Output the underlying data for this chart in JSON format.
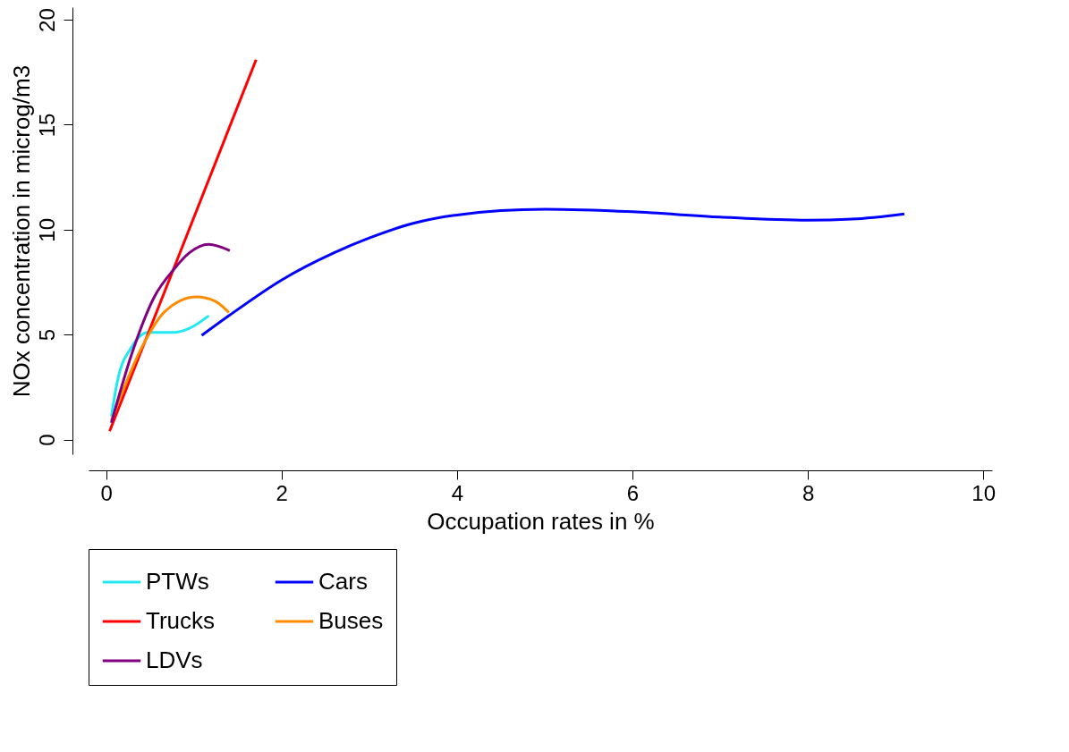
{
  "chart_data": {
    "type": "line",
    "xlabel": "Occupation rates in %",
    "ylabel": "NOx concentration in microg/m3",
    "xlim": [
      -0.2,
      10.1
    ],
    "ylim": [
      -0.7,
      20.6
    ],
    "xticks": [
      0,
      2,
      4,
      6,
      8,
      10
    ],
    "yticks": [
      0,
      5,
      10,
      15,
      20
    ],
    "grid": false,
    "legend": "bottom",
    "line_style": "solid",
    "marker": "none",
    "series": [
      {
        "name": "PTWs",
        "color": "#22e8f0",
        "x": [
          0.06,
          0.13,
          0.29,
          0.48,
          0.77,
          0.95,
          1.17
        ],
        "values": [
          1.1,
          2.8,
          4.4,
          5.1,
          5.1,
          5.3,
          5.9
        ]
      },
      {
        "name": "Cars",
        "color": "#0000ff",
        "x": [
          1.09,
          1.4,
          2,
          2.6,
          3,
          3.5,
          4,
          5,
          6,
          7,
          8,
          8.5,
          9.1
        ],
        "values": [
          4.96,
          5.9,
          7.6,
          8.9,
          9.6,
          10.3,
          10.7,
          10.97,
          10.85,
          10.6,
          10.45,
          10.5,
          10.75
        ]
      },
      {
        "name": "Trucks",
        "color": "#ff0000",
        "x": [
          0.04,
          1.71
        ],
        "values": [
          0.4,
          18.1
        ]
      },
      {
        "name": "Buses",
        "color": "#ff8c00",
        "x": [
          0.06,
          0.42,
          0.67,
          1.03,
          1.24,
          1.4
        ],
        "values": [
          0.9,
          4.5,
          6.1,
          6.8,
          6.6,
          6.05
        ]
      },
      {
        "name": "LDVs",
        "color": "#800080",
        "x": [
          0.06,
          0.29,
          0.55,
          0.77,
          0.95,
          1.17,
          1.41
        ],
        "values": [
          0.8,
          4.05,
          6.8,
          8.1,
          8.9,
          9.3,
          9.0
        ]
      }
    ]
  }
}
